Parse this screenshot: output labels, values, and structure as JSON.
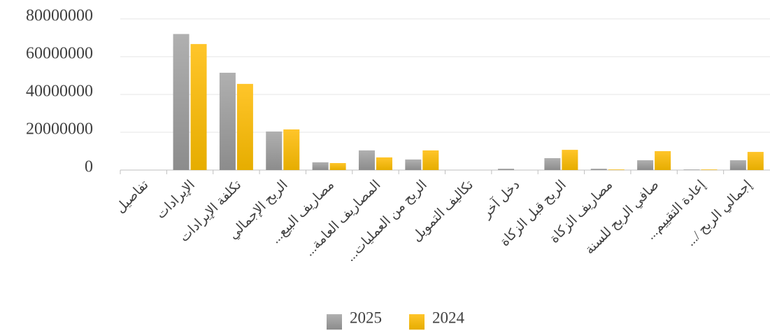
{
  "chart_data": {
    "type": "bar",
    "categories": [
      "تفاصيل",
      "الإيرادات",
      "تكلفة الإيرادات",
      "الربح الإجمالي",
      "مصاريف البيع...",
      "المصاريف العامة...",
      "الربح من العمليات...",
      "تكاليف التمويل",
      "دخل آخر",
      "الربح قبل الزكاة",
      "مصاريف الزكاة",
      "صافي الربح للسنة",
      "إعادة التقييم...",
      "إجمالي الربح /..."
    ],
    "series": [
      {
        "name": "2025",
        "color": "#a0a0a0",
        "values": [
          0,
          72000000,
          51500000,
          20400000,
          4100000,
          10400000,
          5600000,
          0,
          700000,
          6300000,
          700000,
          5200000,
          300000,
          5200000
        ]
      },
      {
        "name": "2024",
        "color": "#ffc000",
        "values": [
          0,
          66700000,
          45600000,
          21500000,
          3700000,
          6700000,
          10400000,
          0,
          0,
          10700000,
          300000,
          10000000,
          300000,
          9600000
        ]
      }
    ],
    "ylim": [
      0,
      80000000
    ],
    "yticks": [
      0,
      20000000,
      40000000,
      60000000,
      80000000
    ],
    "grid": true,
    "legend": "bottom"
  }
}
